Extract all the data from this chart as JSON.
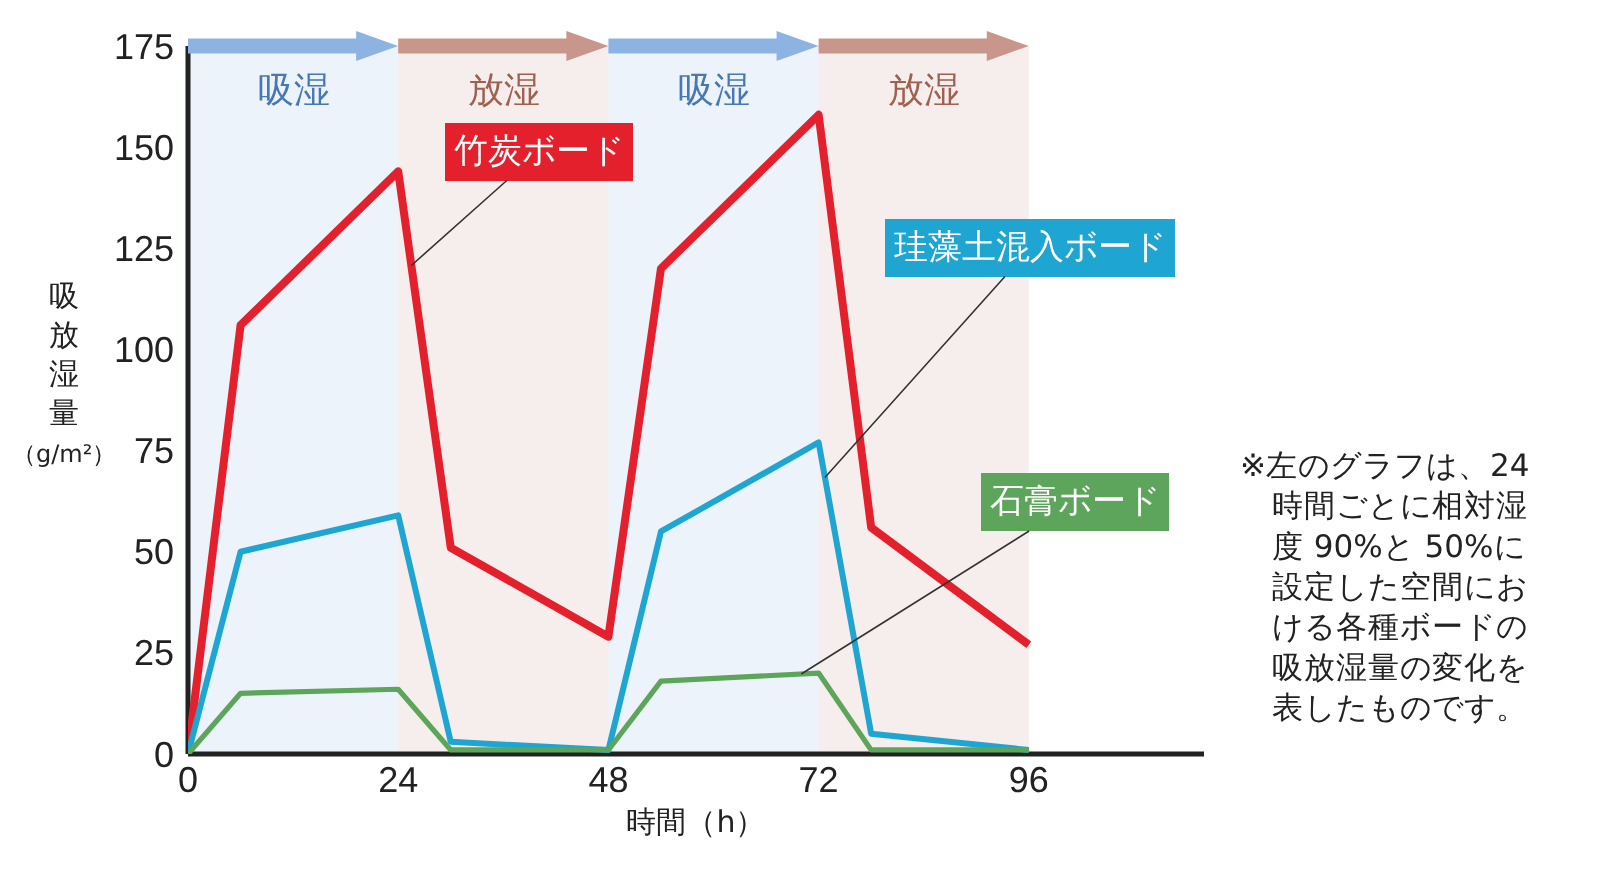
{
  "chart_data": {
    "type": "line",
    "x": [
      0,
      6,
      24,
      30,
      48,
      54,
      72,
      78,
      96
    ],
    "series": [
      {
        "name": "竹炭ボード",
        "color": "#e3202b",
        "values": [
          0,
          106,
          144,
          51,
          29,
          120,
          158,
          56,
          27
        ]
      },
      {
        "name": "珪藻土混入ボード",
        "color": "#1ea5d2",
        "values": [
          0,
          50,
          59,
          3,
          1,
          55,
          77,
          5,
          1
        ]
      },
      {
        "name": "石膏ボード",
        "color": "#5da55a",
        "values": [
          0,
          15,
          16,
          1,
          1,
          18,
          20,
          1,
          1
        ]
      }
    ],
    "xlabel": "時間（h）",
    "ylabel": "吸放湿量（g/m²）",
    "xlim": [
      0,
      116
    ],
    "xticks": [
      0,
      24,
      48,
      72,
      96
    ],
    "ylim": [
      0,
      175
    ],
    "yticks": [
      0,
      25,
      50,
      75,
      100,
      125,
      150,
      175
    ],
    "bands": [
      {
        "axis": "x",
        "from": 0,
        "to": 24,
        "label": "吸湿",
        "color": "#8db3e2"
      },
      {
        "axis": "x",
        "from": 24,
        "to": 48,
        "label": "放湿",
        "color": "#c8968a"
      },
      {
        "axis": "x",
        "from": 48,
        "to": 72,
        "label": "吸湿",
        "color": "#8db3e2"
      },
      {
        "axis": "x",
        "from": 72,
        "to": 96,
        "label": "放湿",
        "color": "#c8968a"
      }
    ],
    "annotations": [
      "※左のグラフは、24時間ごとに相対湿度 90%と 50%に設定した空間における各種ボードの吸放湿量の変化を表したものです。"
    ],
    "grid": false,
    "legend": false,
    "marker": "none",
    "line_style": "solid"
  }
}
